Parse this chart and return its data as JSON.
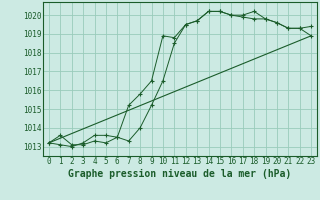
{
  "bg_color": "#cceae3",
  "grid_color": "#99ccbb",
  "line_color": "#1a5c2a",
  "marker_color": "#1a5c2a",
  "xlabel": "Graphe pression niveau de la mer (hPa)",
  "xlabel_fontsize": 7,
  "xlim": [
    -0.5,
    23.5
  ],
  "ylim": [
    1012.5,
    1020.7
  ],
  "yticks": [
    1013,
    1014,
    1015,
    1016,
    1017,
    1018,
    1019,
    1020
  ],
  "xticks": [
    0,
    1,
    2,
    3,
    4,
    5,
    6,
    7,
    8,
    9,
    10,
    11,
    12,
    13,
    14,
    15,
    16,
    17,
    18,
    19,
    20,
    21,
    22,
    23
  ],
  "series1_x": [
    0,
    1,
    2,
    3,
    4,
    5,
    6,
    7,
    8,
    9,
    10,
    11,
    12,
    13,
    14,
    15,
    16,
    17,
    18,
    19,
    20,
    21,
    22,
    23
  ],
  "series1_y": [
    1013.2,
    1013.6,
    1013.1,
    1013.1,
    1013.3,
    1013.2,
    1013.5,
    1013.3,
    1014.0,
    1015.2,
    1016.5,
    1018.5,
    1019.5,
    1019.7,
    1020.2,
    1020.2,
    1020.0,
    1020.0,
    1020.2,
    1019.8,
    1019.6,
    1019.3,
    1019.3,
    1019.4
  ],
  "series2_x": [
    0,
    1,
    2,
    3,
    4,
    5,
    6,
    7,
    8,
    9,
    10,
    11,
    12,
    13,
    14,
    15,
    16,
    17,
    18,
    19,
    20,
    21,
    22,
    23
  ],
  "series2_y": [
    1013.2,
    1013.1,
    1013.0,
    1013.2,
    1013.6,
    1013.6,
    1013.5,
    1015.2,
    1015.8,
    1016.5,
    1018.9,
    1018.8,
    1019.5,
    1019.7,
    1020.2,
    1020.2,
    1020.0,
    1019.9,
    1019.8,
    1019.8,
    1019.6,
    1019.3,
    1019.3,
    1018.9
  ],
  "series3_x": [
    0,
    23
  ],
  "series3_y": [
    1013.2,
    1018.9
  ]
}
